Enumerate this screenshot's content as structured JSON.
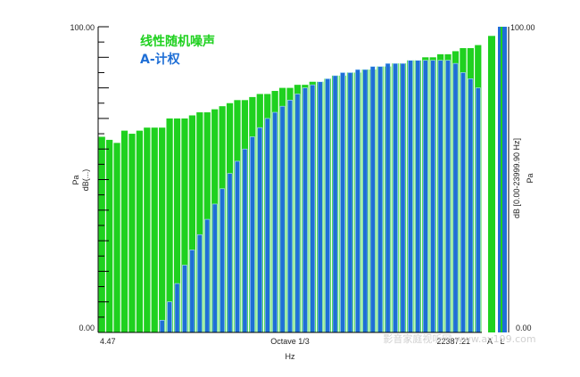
{
  "chart_data": {
    "type": "bar",
    "x_axis": {
      "label": "Hz",
      "left_tick": "4.47",
      "center_tick": "Octave 1/3",
      "right_tick": "22387.21"
    },
    "y_axis": {
      "left_labels": [
        "Pa",
        "dB(...)"
      ],
      "ylim": [
        0,
        100
      ],
      "top_tick": "100.00",
      "bottom_tick": "0.00"
    },
    "right_axis": {
      "labels": [
        "dB  [0.00-23999.90 Hz]",
        "Pa"
      ],
      "top_tick": "100.00",
      "bottom_tick": "0.00"
    },
    "series": [
      {
        "name": "线性随机噪声",
        "color": "#1fd11f",
        "values": [
          64,
          63,
          62,
          66,
          65,
          66,
          67,
          67,
          67,
          70,
          70,
          70,
          71,
          72,
          72,
          73,
          74,
          75,
          76,
          76,
          77,
          78,
          78,
          79,
          80,
          80,
          81,
          81,
          82,
          82,
          83,
          84,
          84,
          85,
          85,
          86,
          86,
          87,
          87,
          88,
          88,
          89,
          89,
          90,
          90,
          91,
          91,
          92,
          93,
          93,
          94
        ]
      },
      {
        "name": "A-计权",
        "color": "#1f6fd6",
        "values": [
          0,
          0,
          0,
          0,
          0,
          0,
          0,
          0,
          4,
          10,
          16,
          22,
          27,
          32,
          37,
          42,
          47,
          52,
          56,
          60,
          64,
          67,
          70,
          72,
          74,
          76,
          78,
          80,
          81,
          82,
          83,
          84,
          85,
          85,
          86,
          86,
          87,
          87,
          88,
          88,
          88,
          89,
          89,
          89,
          89,
          89,
          89,
          88,
          85,
          83,
          80
        ]
      }
    ],
    "legend_position": "top-left",
    "side_bars": {
      "labels": [
        "A",
        "L"
      ],
      "green_value": 97,
      "blue_value": 100
    },
    "watermark": "影音家庭视听网 www.av199.com"
  }
}
